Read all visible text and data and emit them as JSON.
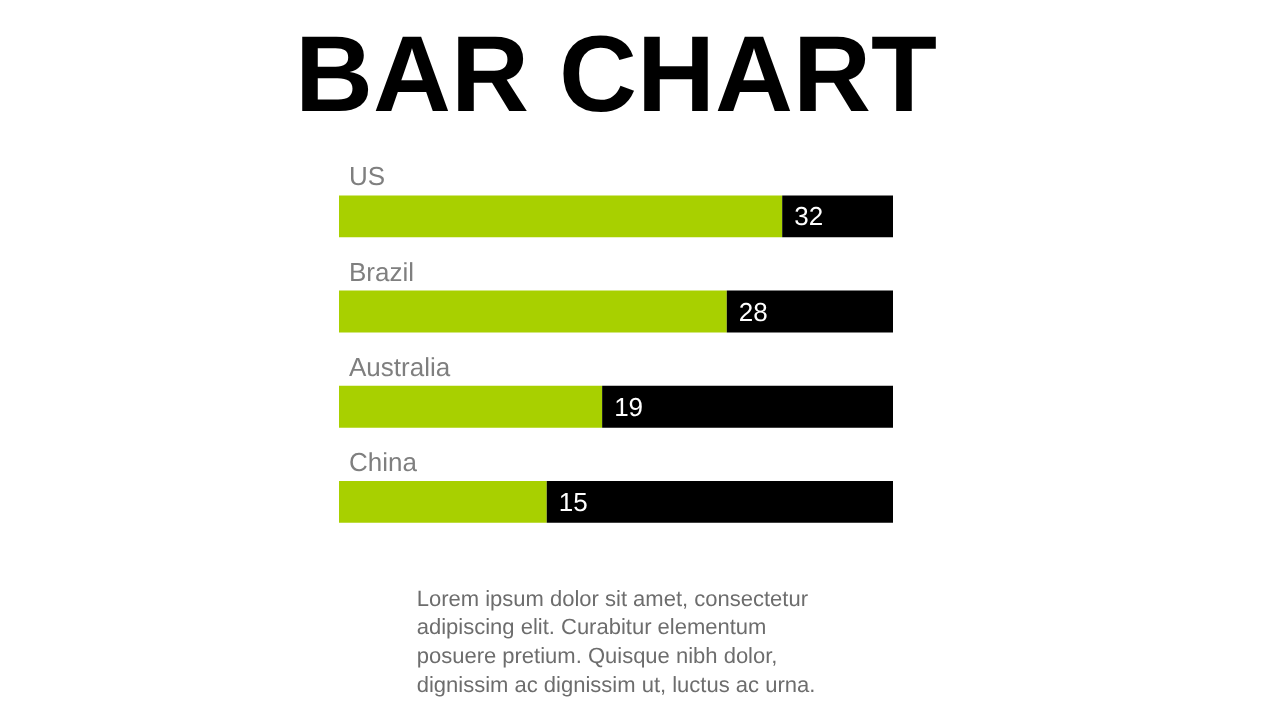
{
  "chart_data": {
    "type": "bar",
    "orientation": "horizontal",
    "stacked": true,
    "title": "BAR CHART",
    "categories": [
      "US",
      "Brazil",
      "Australia",
      "China"
    ],
    "xlim": [
      0,
      40
    ],
    "tick_labels": false,
    "series": [
      {
        "color": "#a8d000",
        "values": [
          32,
          28,
          19,
          15
        ],
        "value_labels": [
          "32",
          "28",
          "19",
          "15"
        ]
      },
      {
        "color": "#000000",
        "values": [
          8,
          12,
          21,
          25
        ]
      }
    ],
    "annotations": [
      "Lorem ipsum dolor sit amet, consectetur adipiscing elit. Curabitur elementum posuere pretium. Quisque nibh dolor, dignissim ac dignissim ut, luctus ac urna."
    ]
  }
}
